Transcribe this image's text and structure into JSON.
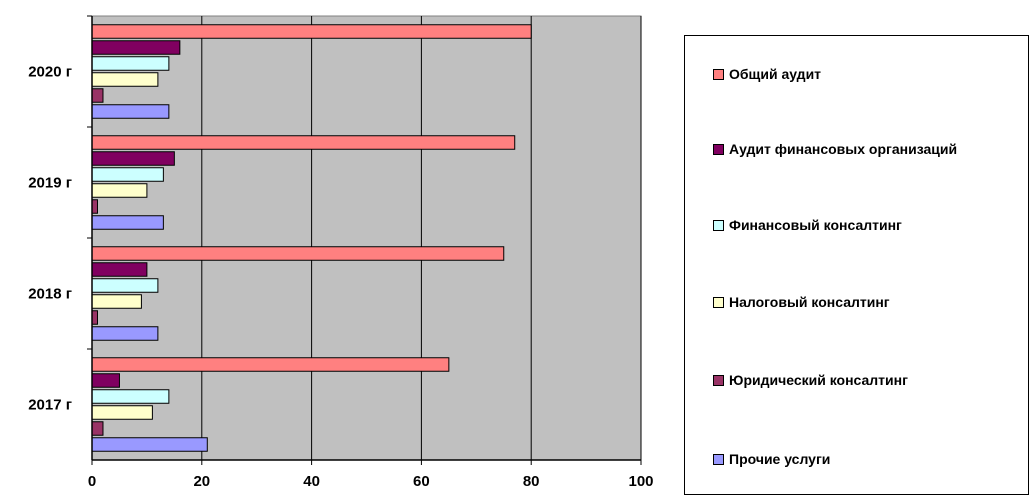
{
  "chart_data": {
    "type": "bar",
    "orientation": "horizontal",
    "categories": [
      "2017 г",
      "2018 г",
      "2019 г",
      "2020 г"
    ],
    "xlim": [
      0,
      100
    ],
    "x_ticks": [
      "0",
      "20",
      "40",
      "60",
      "80",
      "100"
    ],
    "grid": true,
    "legend_position": "right",
    "series": [
      {
        "name": "Общий аудит",
        "color": "#ff8080",
        "values": [
          65,
          75,
          77,
          80
        ]
      },
      {
        "name": "Аудит финансовых организаций",
        "color": "#800060",
        "values": [
          5,
          10,
          15,
          16
        ]
      },
      {
        "name": "Финансовый консалтинг",
        "color": "#ccffff",
        "values": [
          14,
          12,
          13,
          14
        ]
      },
      {
        "name": "Налоговый консалтинг",
        "color": "#ffffcc",
        "values": [
          11,
          9,
          10,
          12
        ]
      },
      {
        "name": "Юридический консалтинг",
        "color": "#993366",
        "values": [
          2,
          1,
          1,
          2
        ]
      },
      {
        "name": "Прочие услуги",
        "color": "#9999ff",
        "values": [
          21,
          12,
          13,
          14
        ]
      }
    ],
    "plot_background": "#c0c0c0"
  }
}
